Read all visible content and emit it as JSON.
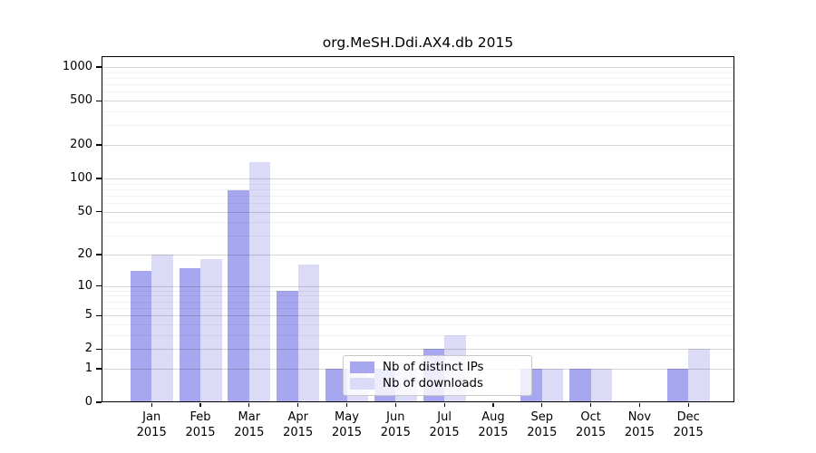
{
  "chart_data": {
    "type": "bar",
    "title": "org.MeSH.Ddi.AX4.db 2015",
    "y_scale": "log10(1+x)",
    "ylim": [
      0,
      1250
    ],
    "grid": true,
    "legend_position": "inside lower-center",
    "y_ticks": [
      0,
      1,
      2,
      5,
      10,
      20,
      50,
      100,
      200,
      500,
      1000
    ],
    "x_ticks": [
      {
        "line1": "Jan",
        "line2": "2015"
      },
      {
        "line1": "Feb",
        "line2": "2015"
      },
      {
        "line1": "Mar",
        "line2": "2015"
      },
      {
        "line1": "Apr",
        "line2": "2015"
      },
      {
        "line1": "May",
        "line2": "2015"
      },
      {
        "line1": "Jun",
        "line2": "2015"
      },
      {
        "line1": "Jul",
        "line2": "2015"
      },
      {
        "line1": "Aug",
        "line2": "2015"
      },
      {
        "line1": "Sep",
        "line2": "2015"
      },
      {
        "line1": "Oct",
        "line2": "2015"
      },
      {
        "line1": "Nov",
        "line2": "2015"
      },
      {
        "line1": "Dec",
        "line2": "2015"
      }
    ],
    "categories": [
      "Jan 2015",
      "Feb 2015",
      "Mar 2015",
      "Apr 2015",
      "May 2015",
      "Jun 2015",
      "Jul 2015",
      "Aug 2015",
      "Sep 2015",
      "Oct 2015",
      "Nov 2015",
      "Dec 2015"
    ],
    "series": [
      {
        "name": "Nb of distinct IPs",
        "color": "#a7a7f0",
        "values": [
          14,
          15,
          78,
          9,
          1,
          1,
          2,
          0,
          1,
          1,
          0,
          1
        ]
      },
      {
        "name": "Nb of downloads",
        "color": "#dbdbf8",
        "values": [
          20,
          18,
          140,
          16,
          1,
          1,
          3,
          0,
          1,
          1,
          0,
          2
        ]
      }
    ]
  }
}
